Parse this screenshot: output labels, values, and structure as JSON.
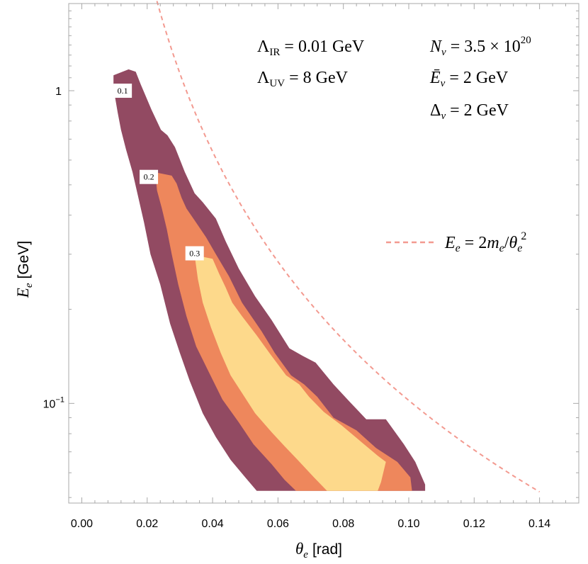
{
  "chart_data": {
    "type": "contour",
    "xlabel_symbol": "θ",
    "xlabel_sub": "e",
    "xlabel_unit": "[rad]",
    "ylabel_symbol": "E",
    "ylabel_sub": "e",
    "ylabel_unit": "[GeV]",
    "xlim": [
      -0.004,
      0.152
    ],
    "ylim": [
      0.048,
      1.9
    ],
    "yscale": "log",
    "x_ticks": [
      {
        "v": 0.0,
        "label": "0.00"
      },
      {
        "v": 0.02,
        "label": "0.02"
      },
      {
        "v": 0.04,
        "label": "0.04"
      },
      {
        "v": 0.06,
        "label": "0.06"
      },
      {
        "v": 0.08,
        "label": "0.08"
      },
      {
        "v": 0.1,
        "label": "0.10"
      },
      {
        "v": 0.12,
        "label": "0.12"
      },
      {
        "v": 0.14,
        "label": "0.14"
      }
    ],
    "y_major_ticks": [
      {
        "v": 0.1,
        "base": "10",
        "exp": "−1"
      },
      {
        "v": 1.0,
        "base": "1",
        "exp": ""
      }
    ],
    "y_minor_ticks": [
      0.05,
      0.06,
      0.07,
      0.08,
      0.09,
      0.2,
      0.3,
      0.4,
      0.5,
      0.6,
      0.7,
      0.8,
      0.9,
      1.1,
      1.2,
      1.3,
      1.4,
      1.5,
      1.6,
      1.7,
      1.8
    ],
    "parameters": {
      "lambda_ir": {
        "sym": "Λ",
        "sub": "IR",
        "value": "= 0.01 GeV"
      },
      "lambda_uv": {
        "sym": "Λ",
        "sub": "UV",
        "value": "= 8 GeV"
      },
      "n_nu": {
        "sym": "N",
        "sub": "ν",
        "value": "= 3.5 × 10",
        "sup": "20"
      },
      "e_nu": {
        "sym": "Ē",
        "sub": "ν",
        "value": "= 2 GeV"
      },
      "delta_nu": {
        "sym": "Δ",
        "sub": "ν",
        "value": "= 2 GeV"
      }
    },
    "legend": [
      {
        "name": "E_e = 2m_e/θ_e²",
        "style": "dashed",
        "color": "#f39a90",
        "text": {
          "l1": "E",
          "l1sub": "e",
          "eq": " = 2",
          "m": "m",
          "msub": "e",
          "slash": "/",
          "th": "θ",
          "thsub": "e",
          "thsup": "2"
        }
      }
    ],
    "curve": {
      "name": "E_e = 2m_e/θ_e²",
      "me": 0.000511,
      "x_from": 0.022,
      "x_to": 0.14
    },
    "contours": [
      {
        "level": 0.1,
        "label": "0.1",
        "color": "#924a62",
        "label_at": {
          "x": 0.0125,
          "y": 1.0
        },
        "boundary": [
          [
            0.0097,
            1.12
          ],
          [
            0.0143,
            1.17
          ],
          [
            0.0165,
            1.15
          ],
          [
            0.018,
            1.05
          ],
          [
            0.0213,
            0.87
          ],
          [
            0.0242,
            0.75
          ],
          [
            0.0262,
            0.72
          ],
          [
            0.0285,
            0.66
          ],
          [
            0.0315,
            0.55
          ],
          [
            0.0345,
            0.47
          ],
          [
            0.037,
            0.44
          ],
          [
            0.041,
            0.39
          ],
          [
            0.044,
            0.33
          ],
          [
            0.048,
            0.27
          ],
          [
            0.053,
            0.22
          ],
          [
            0.058,
            0.185
          ],
          [
            0.0635,
            0.15
          ],
          [
            0.0675,
            0.142
          ],
          [
            0.0715,
            0.135
          ],
          [
            0.077,
            0.115
          ],
          [
            0.082,
            0.101
          ],
          [
            0.087,
            0.089
          ],
          [
            0.093,
            0.089
          ],
          [
            0.0985,
            0.074
          ],
          [
            0.102,
            0.065
          ],
          [
            0.105,
            0.055
          ],
          [
            0.105,
            0.0525
          ],
          [
            0.0535,
            0.0525
          ],
          [
            0.05,
            0.058
          ],
          [
            0.0455,
            0.066
          ],
          [
            0.041,
            0.078
          ],
          [
            0.037,
            0.093
          ],
          [
            0.033,
            0.118
          ],
          [
            0.03,
            0.145
          ],
          [
            0.027,
            0.18
          ],
          [
            0.024,
            0.24
          ],
          [
            0.021,
            0.3
          ],
          [
            0.019,
            0.38
          ],
          [
            0.017,
            0.47
          ],
          [
            0.0155,
            0.55
          ],
          [
            0.0135,
            0.65
          ],
          [
            0.012,
            0.75
          ],
          [
            0.011,
            0.85
          ],
          [
            0.0102,
            0.95
          ],
          [
            0.0097,
            1.05
          ]
        ]
      },
      {
        "level": 0.2,
        "label": "0.2",
        "color": "#ee875c",
        "label_at": {
          "x": 0.0205,
          "y": 0.53
        },
        "boundary": [
          [
            0.0225,
            0.548
          ],
          [
            0.0275,
            0.535
          ],
          [
            0.029,
            0.505
          ],
          [
            0.0305,
            0.455
          ],
          [
            0.032,
            0.42
          ],
          [
            0.0345,
            0.385
          ],
          [
            0.038,
            0.34
          ],
          [
            0.041,
            0.3
          ],
          [
            0.045,
            0.255
          ],
          [
            0.049,
            0.21
          ],
          [
            0.055,
            0.17
          ],
          [
            0.059,
            0.145
          ],
          [
            0.064,
            0.123
          ],
          [
            0.068,
            0.115
          ],
          [
            0.072,
            0.105
          ],
          [
            0.077,
            0.09
          ],
          [
            0.084,
            0.082
          ],
          [
            0.09,
            0.072
          ],
          [
            0.0965,
            0.065
          ],
          [
            0.1005,
            0.058
          ],
          [
            0.101,
            0.0525
          ],
          [
            0.0655,
            0.0525
          ],
          [
            0.062,
            0.057
          ],
          [
            0.058,
            0.064
          ],
          [
            0.0525,
            0.074
          ],
          [
            0.048,
            0.087
          ],
          [
            0.043,
            0.103
          ],
          [
            0.039,
            0.125
          ],
          [
            0.035,
            0.152
          ],
          [
            0.032,
            0.19
          ],
          [
            0.0295,
            0.24
          ],
          [
            0.0275,
            0.3
          ],
          [
            0.026,
            0.36
          ],
          [
            0.0245,
            0.42
          ],
          [
            0.023,
            0.48
          ]
        ]
      },
      {
        "level": 0.3,
        "label": "0.3",
        "color": "#fdd98b",
        "label_at": {
          "x": 0.0345,
          "y": 0.302
        },
        "boundary": [
          [
            0.0345,
            0.298
          ],
          [
            0.04,
            0.29
          ],
          [
            0.042,
            0.26
          ],
          [
            0.044,
            0.235
          ],
          [
            0.046,
            0.21
          ],
          [
            0.049,
            0.19
          ],
          [
            0.0535,
            0.165
          ],
          [
            0.058,
            0.142
          ],
          [
            0.0625,
            0.123
          ],
          [
            0.0665,
            0.115
          ],
          [
            0.0695,
            0.105
          ],
          [
            0.074,
            0.094
          ],
          [
            0.0795,
            0.085
          ],
          [
            0.085,
            0.076
          ],
          [
            0.0905,
            0.068
          ],
          [
            0.093,
            0.065
          ],
          [
            0.0915,
            0.056
          ],
          [
            0.0905,
            0.0525
          ],
          [
            0.075,
            0.0525
          ],
          [
            0.071,
            0.058
          ],
          [
            0.066,
            0.066
          ],
          [
            0.062,
            0.073
          ],
          [
            0.058,
            0.081
          ],
          [
            0.053,
            0.093
          ],
          [
            0.049,
            0.108
          ],
          [
            0.0455,
            0.123
          ],
          [
            0.0425,
            0.145
          ],
          [
            0.0395,
            0.175
          ],
          [
            0.037,
            0.21
          ],
          [
            0.0355,
            0.25
          ]
        ]
      }
    ]
  }
}
